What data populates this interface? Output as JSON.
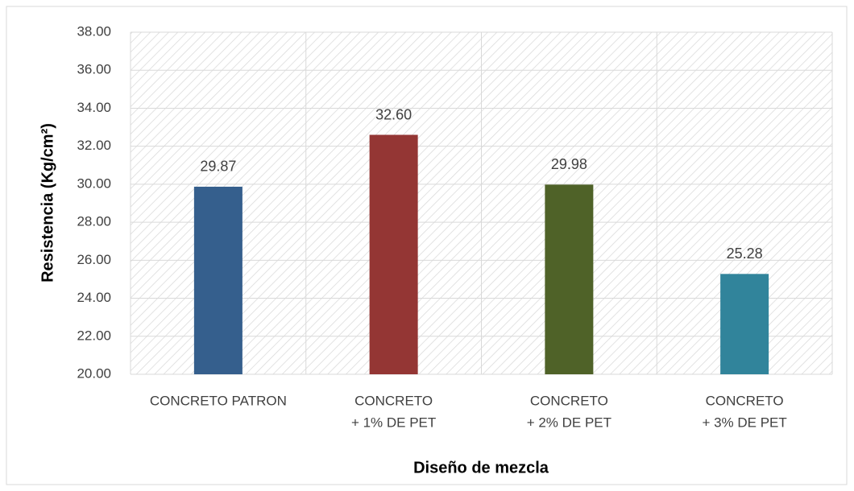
{
  "chart_data": {
    "type": "bar",
    "categories": [
      [
        "CONCRETO PATRON"
      ],
      [
        "CONCRETO",
        "+ 1% DE PET"
      ],
      [
        "CONCRETO",
        "+ 2% DE PET"
      ],
      [
        "CONCRETO",
        "+ 3% DE PET"
      ]
    ],
    "values": [
      29.87,
      32.6,
      29.98,
      25.28
    ],
    "value_labels": [
      "29.87",
      "32.60",
      "29.98",
      "25.28"
    ],
    "colors": [
      "#355f8d",
      "#943634",
      "#4f6228",
      "#31849b"
    ],
    "ylim": [
      20,
      38
    ],
    "yticks": [
      {
        "value": 20,
        "label": "20.00"
      },
      {
        "value": 22,
        "label": "22.00"
      },
      {
        "value": 24,
        "label": "24.00"
      },
      {
        "value": 26,
        "label": "26.00"
      },
      {
        "value": 28,
        "label": "28.00"
      },
      {
        "value": 30,
        "label": "30.00"
      },
      {
        "value": 32,
        "label": "32.00"
      },
      {
        "value": 34,
        "label": "34.00"
      },
      {
        "value": 36,
        "label": "36.00"
      },
      {
        "value": 38,
        "label": "38.00"
      }
    ],
    "grid": true,
    "x_label": "Diseño de mezcla",
    "y_label": "Resistencia  (Kg/cm²)"
  }
}
